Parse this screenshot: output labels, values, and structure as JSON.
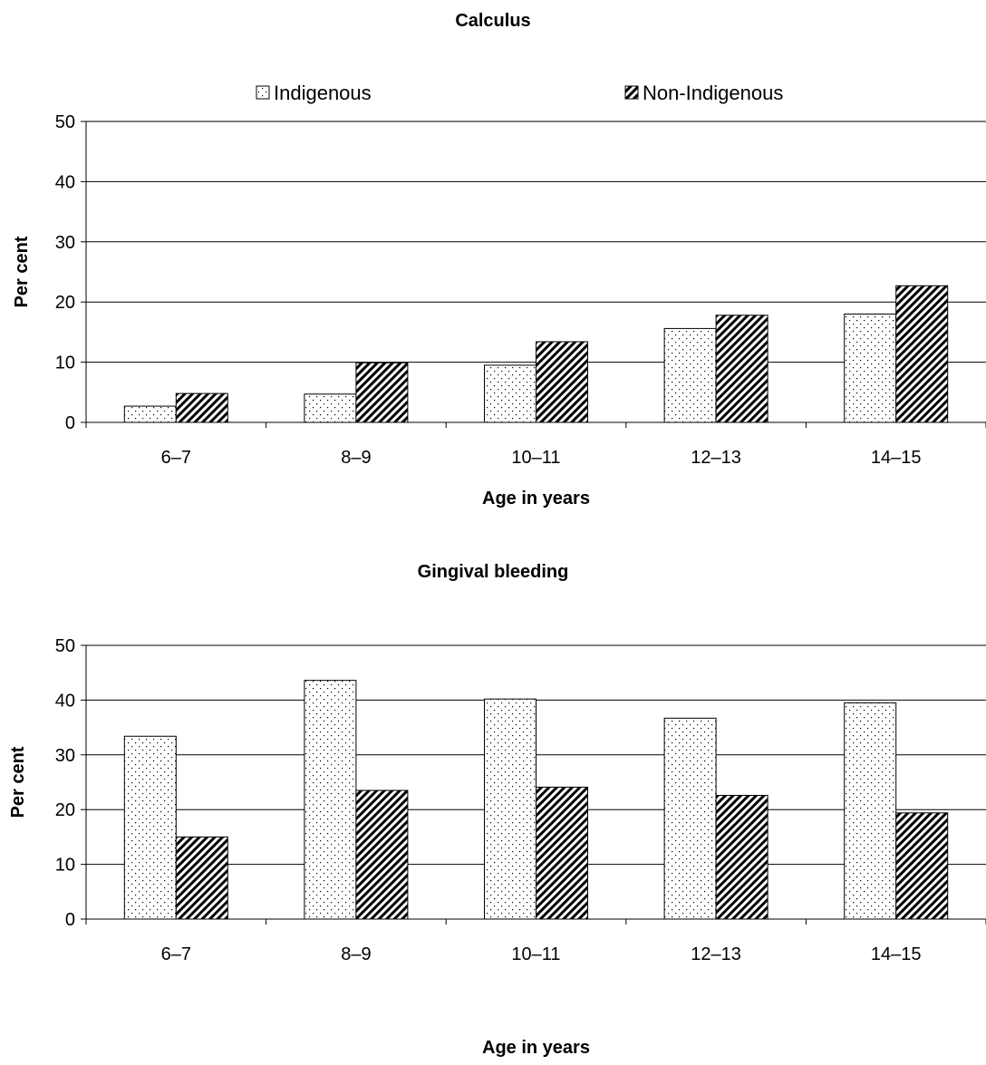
{
  "legend": {
    "placement": "top",
    "items": [
      {
        "label": "Indigenous",
        "pattern": "dots"
      },
      {
        "label": "Non-Indigenous",
        "pattern": "diagonal"
      }
    ]
  },
  "colors": {
    "axis": "#000000",
    "grid": "#000000",
    "bar_fill": "#ffffff",
    "pattern": "#000000"
  },
  "chart_data": [
    {
      "type": "bar",
      "title": "Calculus",
      "xlabel": "Age in years",
      "ylabel": "Per cent",
      "ylim": [
        0,
        50
      ],
      "yticks": [
        0,
        10,
        20,
        30,
        40,
        50
      ],
      "grid": true,
      "categories": [
        "6–7",
        "8–9",
        "10–11",
        "12–13",
        "14–15"
      ],
      "series": [
        {
          "name": "Indigenous",
          "values": [
            2.7,
            4.7,
            9.5,
            15.6,
            18.0
          ]
        },
        {
          "name": "Non-Indigenous",
          "values": [
            4.8,
            9.9,
            13.4,
            17.8,
            22.7
          ]
        }
      ]
    },
    {
      "type": "bar",
      "title": "Gingival bleeding",
      "xlabel": "Age in years",
      "ylabel": "Per cent",
      "ylim": [
        0,
        50
      ],
      "yticks": [
        0,
        10,
        20,
        30,
        40,
        50
      ],
      "grid": true,
      "categories": [
        "6–7",
        "8–9",
        "10–11",
        "12–13",
        "14–15"
      ],
      "series": [
        {
          "name": "Indigenous",
          "values": [
            33.4,
            43.6,
            40.2,
            36.7,
            39.5
          ]
        },
        {
          "name": "Non-Indigenous",
          "values": [
            15.0,
            23.5,
            24.1,
            22.6,
            19.4
          ]
        }
      ]
    }
  ]
}
